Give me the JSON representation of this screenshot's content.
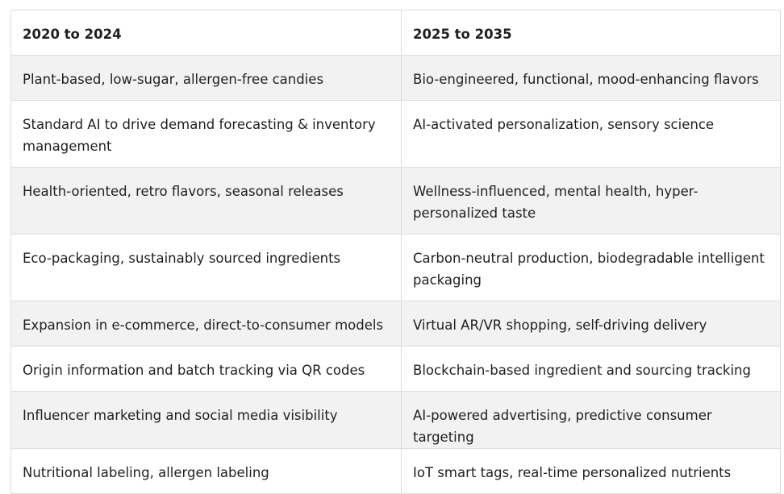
{
  "table": {
    "headers": [
      "2020 to 2024",
      "2025 to 2035"
    ],
    "rows": [
      [
        "Plant-based, low-sugar, allergen-free candies",
        "Bio-engineered, functional, mood-enhancing flavors"
      ],
      [
        "Standard AI to drive demand forecasting & inventory management",
        "AI-activated personalization, sensory science"
      ],
      [
        "Health-oriented, retro flavors, seasonal releases",
        "Wellness-influenced, mental health, hyper-personalized taste"
      ],
      [
        "Eco-packaging, sustainably sourced ingredients",
        "Carbon-neutral production, biodegradable intelligent packaging"
      ],
      [
        "Expansion in e-commerce, direct-to-consumer models",
        "Virtual AR/VR shopping, self-driving delivery"
      ],
      [
        "Origin information and batch tracking via QR codes",
        "Blockchain-based ingredient and sourcing tracking"
      ],
      [
        "Influencer marketing and social media visibility",
        "AI-powered advertising, predictive consumer targeting"
      ],
      [
        "Nutritional labeling, allergen labeling",
        "IoT smart tags, real-time personalized nutrients"
      ]
    ]
  }
}
